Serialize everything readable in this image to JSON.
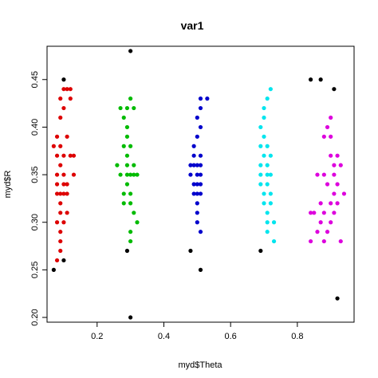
{
  "chart_data": {
    "type": "scatter",
    "title": "var1",
    "xlabel": "myd$Theta",
    "ylabel": "myd$R",
    "xlim": [
      0.05,
      0.97
    ],
    "ylim": [
      0.195,
      0.485
    ],
    "xticks": [
      "0.2",
      "0.4",
      "0.6",
      "0.8"
    ],
    "xtick_values": [
      0.2,
      0.4,
      0.6,
      0.8
    ],
    "yticks": [
      "0.20",
      "0.25",
      "0.30",
      "0.35",
      "0.40",
      "0.45"
    ],
    "ytick_values": [
      0.2,
      0.25,
      0.3,
      0.35,
      0.4,
      0.45
    ],
    "grid": false,
    "legend": "none",
    "series": [
      {
        "color": "#dd0000",
        "points": [
          [
            0.1,
            0.44
          ],
          [
            0.11,
            0.44
          ],
          [
            0.12,
            0.44
          ],
          [
            0.09,
            0.43
          ],
          [
            0.12,
            0.43
          ],
          [
            0.1,
            0.42
          ],
          [
            0.09,
            0.41
          ],
          [
            0.08,
            0.39
          ],
          [
            0.11,
            0.39
          ],
          [
            0.07,
            0.38
          ],
          [
            0.09,
            0.38
          ],
          [
            0.08,
            0.37
          ],
          [
            0.1,
            0.37
          ],
          [
            0.12,
            0.37
          ],
          [
            0.13,
            0.37
          ],
          [
            0.09,
            0.36
          ],
          [
            0.08,
            0.35
          ],
          [
            0.1,
            0.35
          ],
          [
            0.13,
            0.35
          ],
          [
            0.08,
            0.34
          ],
          [
            0.1,
            0.34
          ],
          [
            0.11,
            0.34
          ],
          [
            0.08,
            0.33
          ],
          [
            0.09,
            0.33
          ],
          [
            0.1,
            0.33
          ],
          [
            0.11,
            0.33
          ],
          [
            0.09,
            0.32
          ],
          [
            0.09,
            0.31
          ],
          [
            0.11,
            0.31
          ],
          [
            0.08,
            0.3
          ],
          [
            0.1,
            0.3
          ],
          [
            0.09,
            0.29
          ],
          [
            0.09,
            0.28
          ],
          [
            0.09,
            0.27
          ],
          [
            0.08,
            0.26
          ]
        ]
      },
      {
        "color": "#00bb00",
        "points": [
          [
            0.3,
            0.43
          ],
          [
            0.27,
            0.42
          ],
          [
            0.29,
            0.42
          ],
          [
            0.31,
            0.42
          ],
          [
            0.28,
            0.41
          ],
          [
            0.29,
            0.4
          ],
          [
            0.29,
            0.39
          ],
          [
            0.28,
            0.38
          ],
          [
            0.3,
            0.38
          ],
          [
            0.29,
            0.37
          ],
          [
            0.26,
            0.36
          ],
          [
            0.29,
            0.36
          ],
          [
            0.31,
            0.36
          ],
          [
            0.27,
            0.35
          ],
          [
            0.29,
            0.35
          ],
          [
            0.3,
            0.35
          ],
          [
            0.31,
            0.35
          ],
          [
            0.32,
            0.35
          ],
          [
            0.29,
            0.34
          ],
          [
            0.28,
            0.33
          ],
          [
            0.3,
            0.33
          ],
          [
            0.28,
            0.32
          ],
          [
            0.3,
            0.32
          ],
          [
            0.31,
            0.31
          ],
          [
            0.32,
            0.3
          ],
          [
            0.3,
            0.29
          ],
          [
            0.3,
            0.28
          ]
        ]
      },
      {
        "color": "#0000cc",
        "points": [
          [
            0.51,
            0.43
          ],
          [
            0.53,
            0.43
          ],
          [
            0.51,
            0.42
          ],
          [
            0.5,
            0.41
          ],
          [
            0.51,
            0.4
          ],
          [
            0.5,
            0.39
          ],
          [
            0.49,
            0.38
          ],
          [
            0.49,
            0.37
          ],
          [
            0.51,
            0.37
          ],
          [
            0.48,
            0.36
          ],
          [
            0.49,
            0.36
          ],
          [
            0.5,
            0.36
          ],
          [
            0.51,
            0.36
          ],
          [
            0.48,
            0.35
          ],
          [
            0.5,
            0.35
          ],
          [
            0.51,
            0.35
          ],
          [
            0.49,
            0.34
          ],
          [
            0.5,
            0.34
          ],
          [
            0.51,
            0.34
          ],
          [
            0.49,
            0.33
          ],
          [
            0.5,
            0.33
          ],
          [
            0.51,
            0.33
          ],
          [
            0.5,
            0.32
          ],
          [
            0.5,
            0.31
          ],
          [
            0.5,
            0.3
          ],
          [
            0.51,
            0.29
          ]
        ]
      },
      {
        "color": "#00e5ee",
        "points": [
          [
            0.72,
            0.44
          ],
          [
            0.71,
            0.43
          ],
          [
            0.7,
            0.42
          ],
          [
            0.7,
            0.41
          ],
          [
            0.69,
            0.4
          ],
          [
            0.7,
            0.39
          ],
          [
            0.69,
            0.38
          ],
          [
            0.71,
            0.38
          ],
          [
            0.7,
            0.37
          ],
          [
            0.72,
            0.37
          ],
          [
            0.69,
            0.36
          ],
          [
            0.71,
            0.36
          ],
          [
            0.69,
            0.35
          ],
          [
            0.71,
            0.35
          ],
          [
            0.72,
            0.35
          ],
          [
            0.69,
            0.34
          ],
          [
            0.71,
            0.34
          ],
          [
            0.7,
            0.33
          ],
          [
            0.72,
            0.33
          ],
          [
            0.7,
            0.32
          ],
          [
            0.72,
            0.32
          ],
          [
            0.71,
            0.31
          ],
          [
            0.71,
            0.3
          ],
          [
            0.73,
            0.3
          ],
          [
            0.71,
            0.29
          ],
          [
            0.73,
            0.28
          ]
        ]
      },
      {
        "color": "#dd00dd",
        "points": [
          [
            0.9,
            0.41
          ],
          [
            0.89,
            0.4
          ],
          [
            0.88,
            0.39
          ],
          [
            0.9,
            0.39
          ],
          [
            0.9,
            0.37
          ],
          [
            0.92,
            0.37
          ],
          [
            0.91,
            0.36
          ],
          [
            0.93,
            0.36
          ],
          [
            0.86,
            0.35
          ],
          [
            0.88,
            0.35
          ],
          [
            0.91,
            0.35
          ],
          [
            0.89,
            0.34
          ],
          [
            0.92,
            0.34
          ],
          [
            0.91,
            0.33
          ],
          [
            0.87,
            0.32
          ],
          [
            0.9,
            0.32
          ],
          [
            0.92,
            0.32
          ],
          [
            0.94,
            0.33
          ],
          [
            0.84,
            0.31
          ],
          [
            0.85,
            0.31
          ],
          [
            0.88,
            0.31
          ],
          [
            0.91,
            0.31
          ],
          [
            0.87,
            0.3
          ],
          [
            0.9,
            0.3
          ],
          [
            0.86,
            0.29
          ],
          [
            0.89,
            0.29
          ],
          [
            0.84,
            0.28
          ],
          [
            0.88,
            0.28
          ],
          [
            0.93,
            0.28
          ]
        ]
      },
      {
        "color": "#000000",
        "points": [
          [
            0.1,
            0.45
          ],
          [
            0.07,
            0.25
          ],
          [
            0.1,
            0.26
          ],
          [
            0.3,
            0.48
          ],
          [
            0.29,
            0.27
          ],
          [
            0.3,
            0.2
          ],
          [
            0.48,
            0.27
          ],
          [
            0.51,
            0.25
          ],
          [
            0.69,
            0.27
          ],
          [
            0.84,
            0.45
          ],
          [
            0.87,
            0.45
          ],
          [
            0.91,
            0.44
          ],
          [
            0.92,
            0.22
          ]
        ]
      }
    ]
  }
}
